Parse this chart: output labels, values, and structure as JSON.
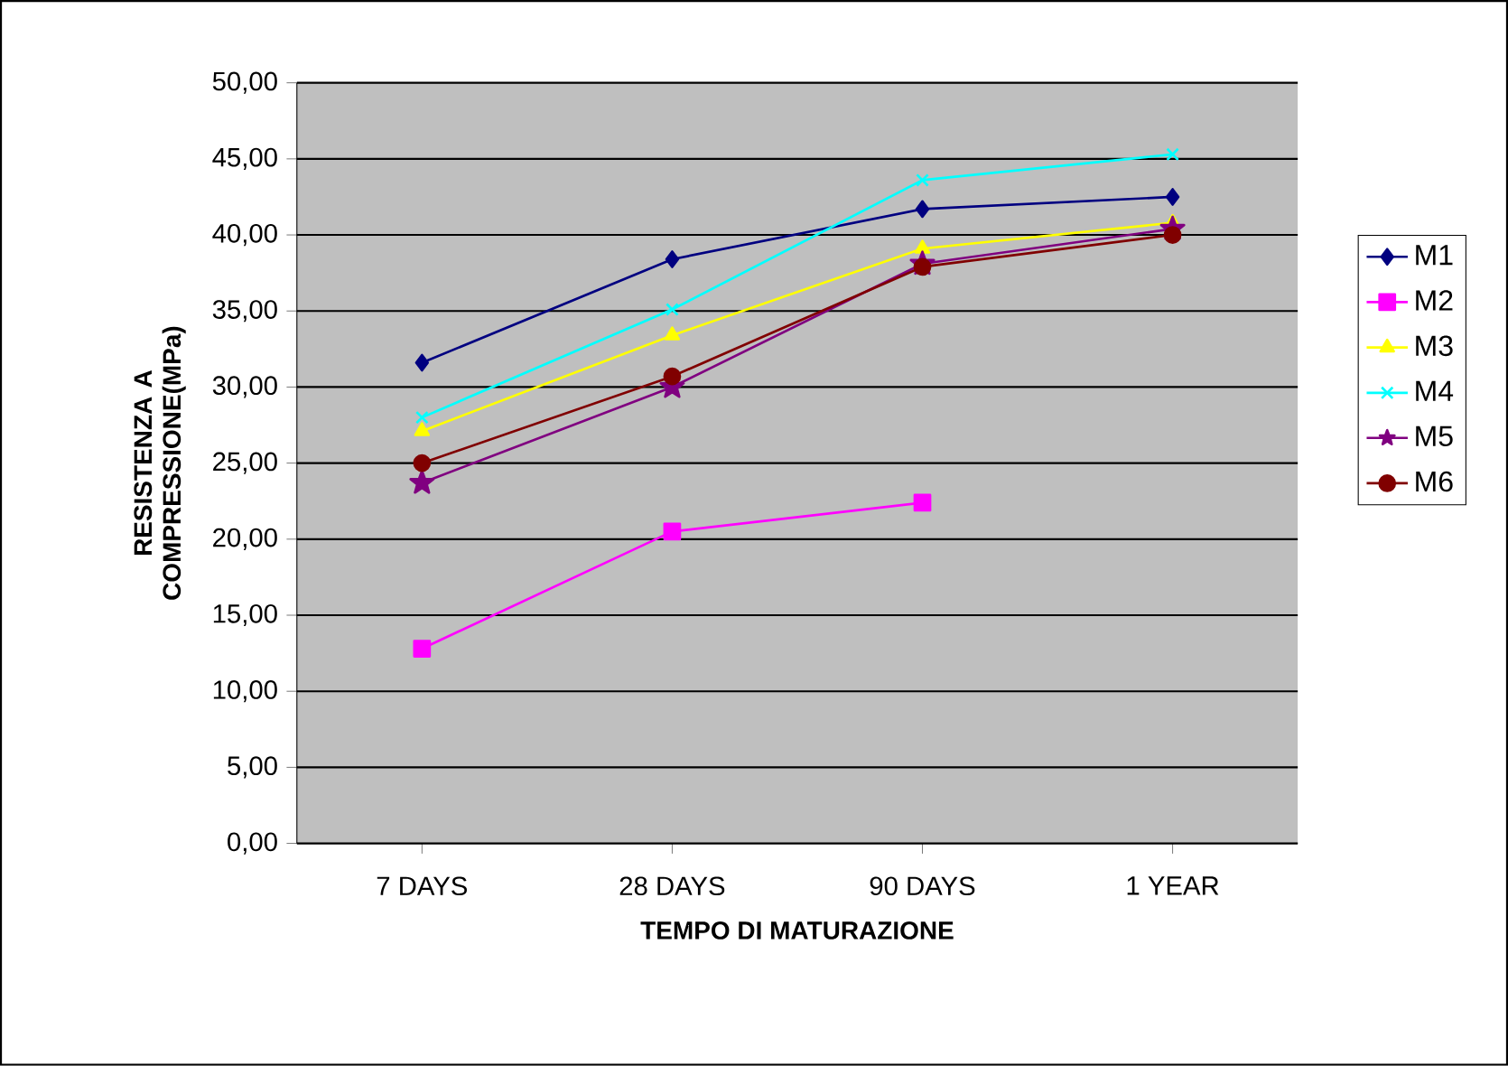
{
  "chart_data": {
    "type": "line",
    "xlabel": "TEMPO DI MATURAZIONE",
    "ylabel": "RESISTENZA A COMPRESSIONE(MPa)",
    "categories": [
      "7 DAYS",
      "28 DAYS",
      "90 DAYS",
      "1 YEAR"
    ],
    "series": [
      {
        "name": "M1",
        "color": "#000080",
        "marker": "diamond",
        "values": [
          31.6,
          38.4,
          41.7,
          42.5
        ]
      },
      {
        "name": "M2",
        "color": "#ff00ff",
        "marker": "square",
        "values": [
          12.8,
          20.5,
          22.4,
          null
        ]
      },
      {
        "name": "M3",
        "color": "#ffff00",
        "marker": "triangle",
        "values": [
          27.1,
          33.4,
          39.1,
          40.8
        ]
      },
      {
        "name": "M4",
        "color": "#00ffff",
        "marker": "cross",
        "values": [
          28.0,
          35.1,
          43.6,
          45.3
        ]
      },
      {
        "name": "M5",
        "color": "#800080",
        "marker": "star",
        "values": [
          23.7,
          30.0,
          38.1,
          40.4
        ]
      },
      {
        "name": "M6",
        "color": "#800000",
        "marker": "circle",
        "values": [
          25.0,
          30.7,
          37.9,
          40.0
        ]
      }
    ],
    "ylim": [
      0,
      50
    ],
    "yticks": [
      {
        "value": 0,
        "label": "0,00"
      },
      {
        "value": 5,
        "label": "5,00"
      },
      {
        "value": 10,
        "label": "10,00"
      },
      {
        "value": 15,
        "label": "15,00"
      },
      {
        "value": 20,
        "label": "20,00"
      },
      {
        "value": 25,
        "label": "25,00"
      },
      {
        "value": 30,
        "label": "30,00"
      },
      {
        "value": 35,
        "label": "35,00"
      },
      {
        "value": 40,
        "label": "40,00"
      },
      {
        "value": 45,
        "label": "45,00"
      },
      {
        "value": 50,
        "label": "50,00"
      }
    ],
    "grid": "y",
    "legend": "right"
  }
}
